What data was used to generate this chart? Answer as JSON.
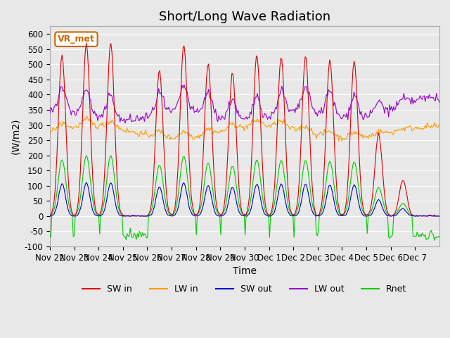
{
  "title": "Short/Long Wave Radiation",
  "xlabel": "Time",
  "ylabel": "(W/m2)",
  "ylim": [
    -100,
    625
  ],
  "yticks": [
    -100,
    -50,
    0,
    50,
    100,
    150,
    200,
    250,
    300,
    350,
    400,
    450,
    500,
    550,
    600
  ],
  "xtick_labels": [
    "Nov 22",
    "Nov 23",
    "Nov 24",
    "Nov 25",
    "Nov 26",
    "Nov 27",
    "Nov 28",
    "Nov 29",
    "Nov 30",
    "Dec 1",
    "Dec 2",
    "Dec 3",
    "Dec 4",
    "Dec 5",
    "Dec 6",
    "Dec 7"
  ],
  "legend_labels": [
    "SW in",
    "LW in",
    "SW out",
    "LW out",
    "Rnet"
  ],
  "legend_colors": [
    "#dd0000",
    "#ff9900",
    "#0000cc",
    "#9900cc",
    "#00cc00"
  ],
  "annotation_text": "VR_met",
  "annotation_color": "#cc6600",
  "background_color": "#e8e8e8",
  "grid_color": "#ffffff",
  "n_days": 16,
  "title_fontsize": 13,
  "label_fontsize": 10,
  "tick_fontsize": 8.5
}
